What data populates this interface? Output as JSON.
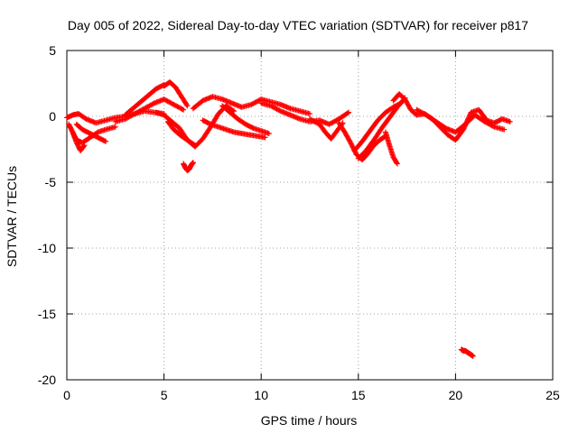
{
  "chart_data": {
    "type": "scatter",
    "title": "Day 005 of 2022, Sidereal Day-to-day VTEC variation (SDTVAR) for receiver p817",
    "xlabel": "GPS time / hours",
    "ylabel": "SDTVAR / TECUs",
    "xlim": [
      0,
      25
    ],
    "ylim": [
      -20,
      5
    ],
    "xticks": [
      0,
      5,
      10,
      15,
      20,
      25
    ],
    "yticks": [
      -20,
      -15,
      -10,
      -5,
      0,
      5
    ],
    "grid": true,
    "marker": "+",
    "series": [
      {
        "name": "SDTVAR",
        "color": "#ff0000",
        "tracks": [
          {
            "x": [
              0.0,
              0.3,
              0.6,
              1.0,
              1.5,
              2.0,
              2.5,
              3.0,
              3.5,
              4.0,
              4.5,
              5.0
            ],
            "y": [
              -0.1,
              0.1,
              0.2,
              -0.2,
              -0.5,
              -0.3,
              -0.1,
              0.0,
              0.2,
              0.4,
              0.3,
              0.2
            ]
          },
          {
            "x": [
              0.1,
              0.3,
              0.5,
              0.8,
              1.2,
              1.6,
              2.0,
              2.5
            ],
            "y": [
              -0.6,
              -1.2,
              -1.8,
              -2.0,
              -1.6,
              -1.2,
              -1.0,
              -0.8
            ]
          },
          {
            "x": [
              0.3,
              0.5,
              0.7,
              0.9
            ],
            "y": [
              -1.2,
              -2.0,
              -2.6,
              -2.2
            ]
          },
          {
            "x": [
              0.5,
              0.8,
              1.2,
              1.6,
              2.0
            ],
            "y": [
              -0.6,
              -1.0,
              -1.3,
              -1.6,
              -1.9
            ]
          },
          {
            "x": [
              2.5,
              3.0,
              3.5,
              4.0,
              4.5,
              5.0,
              5.5,
              6.0
            ],
            "y": [
              -0.4,
              -0.2,
              0.2,
              0.6,
              1.0,
              1.3,
              0.9,
              0.5
            ]
          },
          {
            "x": [
              3.0,
              3.4,
              3.8,
              4.2,
              4.6,
              5.0
            ],
            "y": [
              0.1,
              0.6,
              1.1,
              1.6,
              2.1,
              2.4
            ]
          },
          {
            "x": [
              5.0,
              5.3,
              5.6,
              5.9,
              6.2
            ],
            "y": [
              2.3,
              2.6,
              2.2,
              1.5,
              0.8
            ]
          },
          {
            "x": [
              4.6,
              5.0,
              5.4,
              5.8,
              6.2,
              6.6,
              7.0,
              7.4,
              7.8,
              8.2,
              8.6
            ],
            "y": [
              0.3,
              0.1,
              -0.4,
              -0.9,
              -1.8,
              -2.3,
              -1.7,
              -0.8,
              0.2,
              0.8,
              0.4
            ]
          },
          {
            "x": [
              5.2,
              5.5,
              5.9,
              6.3,
              6.6
            ],
            "y": [
              -0.4,
              -1.0,
              -1.5,
              -1.9,
              -2.2
            ]
          },
          {
            "x": [
              6.0,
              6.1,
              6.2,
              6.3,
              6.4,
              6.5
            ],
            "y": [
              -3.6,
              -3.9,
              -4.1,
              -4.0,
              -3.7,
              -3.5
            ]
          },
          {
            "x": [
              6.5,
              7.0,
              7.5,
              8.0,
              8.5,
              9.0,
              9.5,
              10.0,
              10.5,
              11.0,
              11.5,
              12.0,
              12.5
            ],
            "y": [
              0.6,
              1.2,
              1.5,
              1.3,
              1.0,
              0.7,
              0.9,
              1.3,
              1.1,
              0.9,
              0.6,
              0.4,
              0.2
            ]
          },
          {
            "x": [
              7.0,
              7.4,
              7.8,
              8.2,
              8.6,
              9.0,
              9.4,
              9.8,
              10.2
            ],
            "y": [
              -0.3,
              -0.6,
              -0.8,
              -1.0,
              -1.2,
              -1.3,
              -1.4,
              -1.5,
              -1.6
            ]
          },
          {
            "x": [
              8.0,
              8.4,
              8.8,
              9.2,
              9.6,
              10.0,
              10.4
            ],
            "y": [
              0.8,
              0.3,
              -0.2,
              -0.6,
              -0.9,
              -1.1,
              -1.3
            ]
          },
          {
            "x": [
              10.0,
              10.5,
              11.0,
              11.5,
              12.0,
              12.5,
              13.0,
              13.5,
              14.0,
              14.5
            ],
            "y": [
              1.0,
              0.8,
              0.4,
              0.1,
              -0.2,
              -0.4,
              -0.3,
              -0.6,
              -0.2,
              0.3
            ]
          },
          {
            "x": [
              12.5,
              13.0,
              13.3,
              13.6,
              13.9,
              14.2
            ],
            "y": [
              -0.2,
              -0.6,
              -1.2,
              -1.7,
              -1.1,
              -0.5
            ]
          },
          {
            "x": [
              14.0,
              14.3,
              14.6,
              14.9,
              15.2,
              15.5,
              15.8,
              16.1,
              16.4
            ],
            "y": [
              -0.5,
              -1.2,
              -2.0,
              -2.9,
              -3.3,
              -2.8,
              -2.2,
              -1.8,
              -1.5
            ]
          },
          {
            "x": [
              14.8,
              15.2,
              15.6,
              16.0,
              16.4,
              16.8,
              17.2
            ],
            "y": [
              -2.6,
              -1.9,
              -1.1,
              -0.3,
              0.3,
              0.7,
              1.0
            ]
          },
          {
            "x": [
              15.0,
              15.4,
              15.8,
              16.2,
              16.6,
              17.0,
              17.4
            ],
            "y": [
              -3.2,
              -2.6,
              -1.8,
              -0.9,
              -0.1,
              0.7,
              1.4
            ]
          },
          {
            "x": [
              16.4,
              16.6,
              16.8,
              17.0
            ],
            "y": [
              -1.2,
              -2.2,
              -3.1,
              -3.6
            ]
          },
          {
            "x": [
              16.8,
              17.1,
              17.4,
              17.7,
              18.0,
              18.4,
              18.8,
              19.2,
              19.6,
              20.0,
              20.4,
              20.8,
              21.2,
              21.6,
              22.0,
              22.4,
              22.8
            ],
            "y": [
              1.2,
              1.7,
              1.3,
              0.5,
              0.1,
              0.2,
              -0.2,
              -0.8,
              -1.4,
              -1.8,
              -1.0,
              0.3,
              0.5,
              -0.3,
              -0.5,
              -0.2,
              -0.4
            ]
          },
          {
            "x": [
              18.0,
              18.5,
              19.0,
              19.5,
              20.0,
              20.5,
              21.0,
              21.5,
              22.0,
              22.5
            ],
            "y": [
              0.5,
              0.1,
              -0.4,
              -0.9,
              -1.2,
              -0.6,
              0.1,
              -0.4,
              -0.8,
              -1.0
            ]
          },
          {
            "x": [
              20.3,
              20.4,
              20.5,
              20.6,
              20.7,
              20.8,
              20.9
            ],
            "y": [
              -17.7,
              -17.8,
              -17.8,
              -17.9,
              -18.0,
              -18.1,
              -18.2
            ]
          }
        ]
      }
    ]
  }
}
